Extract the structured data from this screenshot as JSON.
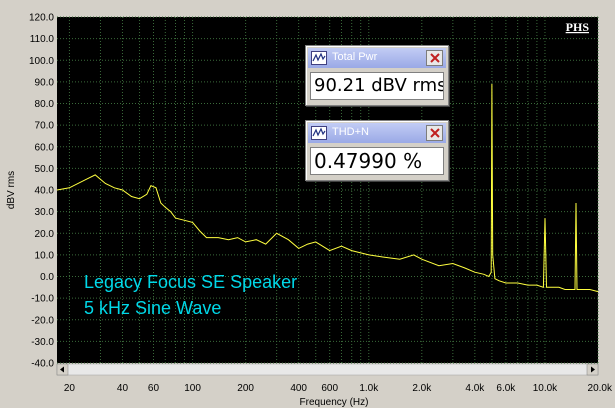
{
  "badge": "PHS",
  "meters": [
    {
      "title": "Total Pwr",
      "value": "90.21 dBV rms"
    },
    {
      "title": "THD+N",
      "value": "0.47990 %"
    }
  ],
  "chart_data": {
    "type": "line",
    "title": "",
    "xlabel": "Frequency (Hz)",
    "ylabel": "dBV rms",
    "xscale": "log",
    "xlim": [
      17,
      20000
    ],
    "ylim": [
      -40,
      120
    ],
    "grid": true,
    "annotation_lines": [
      "Legacy Focus SE Speaker",
      "5 kHz Sine Wave"
    ],
    "y_ticks": [
      "120.0",
      "110.0",
      "100.0",
      "90.0",
      "80.0",
      "70.0",
      "60.0",
      "50.0",
      "40.0",
      "30.0",
      "20.0",
      "10.0",
      "0.0",
      "-10.0",
      "-20.0",
      "-30.0",
      "-40.0"
    ],
    "x_ticks": [
      {
        "value": 20,
        "label": "20"
      },
      {
        "value": 40,
        "label": "40"
      },
      {
        "value": 60,
        "label": "60"
      },
      {
        "value": 100,
        "label": "100"
      },
      {
        "value": 200,
        "label": "200"
      },
      {
        "value": 400,
        "label": "400"
      },
      {
        "value": 600,
        "label": "600"
      },
      {
        "value": 1000,
        "label": "1.0k"
      },
      {
        "value": 2000,
        "label": "2.0k"
      },
      {
        "value": 4000,
        "label": "4.0k"
      },
      {
        "value": 6000,
        "label": "6.0k"
      },
      {
        "value": 10000,
        "label": "10.0k"
      },
      {
        "value": 20000,
        "label": "20.0k"
      }
    ],
    "series": [
      {
        "color": "#ffff40",
        "x": [
          17,
          20,
          25,
          28,
          32,
          36,
          40,
          45,
          50,
          55,
          58,
          62,
          66,
          70,
          75,
          80,
          90,
          100,
          110,
          120,
          140,
          160,
          180,
          200,
          230,
          260,
          300,
          350,
          400,
          450,
          500,
          600,
          700,
          800,
          1000,
          1200,
          1500,
          1800,
          2000,
          2500,
          3000,
          3500,
          4000,
          4500,
          4800,
          4950,
          5000,
          5050,
          5200,
          5500,
          6000,
          7000,
          8000,
          9000,
          9800,
          10000,
          10200,
          11000,
          12000,
          13000,
          14000,
          14800,
          15000,
          15200,
          16000,
          18000,
          20000
        ],
        "y": [
          40,
          41,
          45,
          47,
          43,
          41,
          40,
          37,
          36,
          38,
          42,
          41,
          34,
          32,
          30,
          27,
          26,
          25,
          21,
          18,
          18,
          17,
          18,
          16,
          17,
          15,
          20,
          17,
          13,
          15,
          16,
          12,
          14,
          12,
          10,
          9,
          8,
          10,
          8,
          5,
          6,
          4,
          2,
          1,
          0,
          2,
          89,
          10,
          -1,
          -2,
          -3,
          -3,
          -4,
          -4,
          -5,
          27,
          -5,
          -5,
          -5,
          -6,
          -6,
          -6,
          34,
          -6,
          -6,
          -6,
          -7
        ]
      }
    ]
  }
}
